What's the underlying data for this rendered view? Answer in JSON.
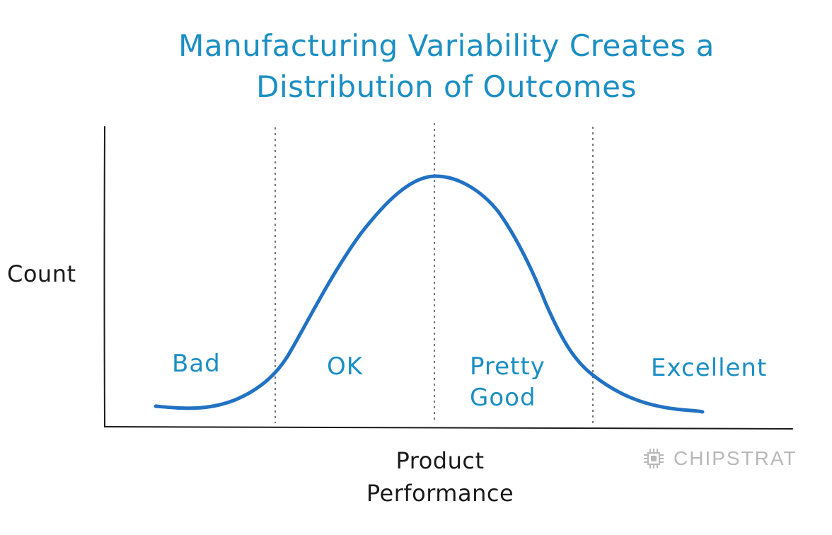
{
  "title": {
    "line1": "Manufacturing Variability Creates a",
    "line2": "Distribution of Outcomes"
  },
  "axes": {
    "y_label": "Count",
    "x_label_line1": "Product",
    "x_label_line2": "Performance"
  },
  "regions": [
    "Bad",
    "OK",
    "Pretty Good",
    "Excellent"
  ],
  "region_labels": {
    "bad": "Bad",
    "ok": "OK",
    "pretty_good_line1": "Pretty",
    "pretty_good_line2": "Good",
    "excellent": "Excellent"
  },
  "curve": {
    "shape": "bell curve (normal distribution)",
    "mean": 0,
    "std_dev": 1,
    "divider_positions_sd": [
      -1,
      0,
      1
    ]
  },
  "watermark": {
    "text": "CHIPSTRAT",
    "icon": "chip-icon"
  },
  "colors": {
    "title": "#1b8fc4",
    "labels": "#1b8fc4",
    "curve": "#2272c4",
    "axis": "#1a1a1a",
    "divider": "#555555",
    "watermark": "#b8b8b8"
  }
}
